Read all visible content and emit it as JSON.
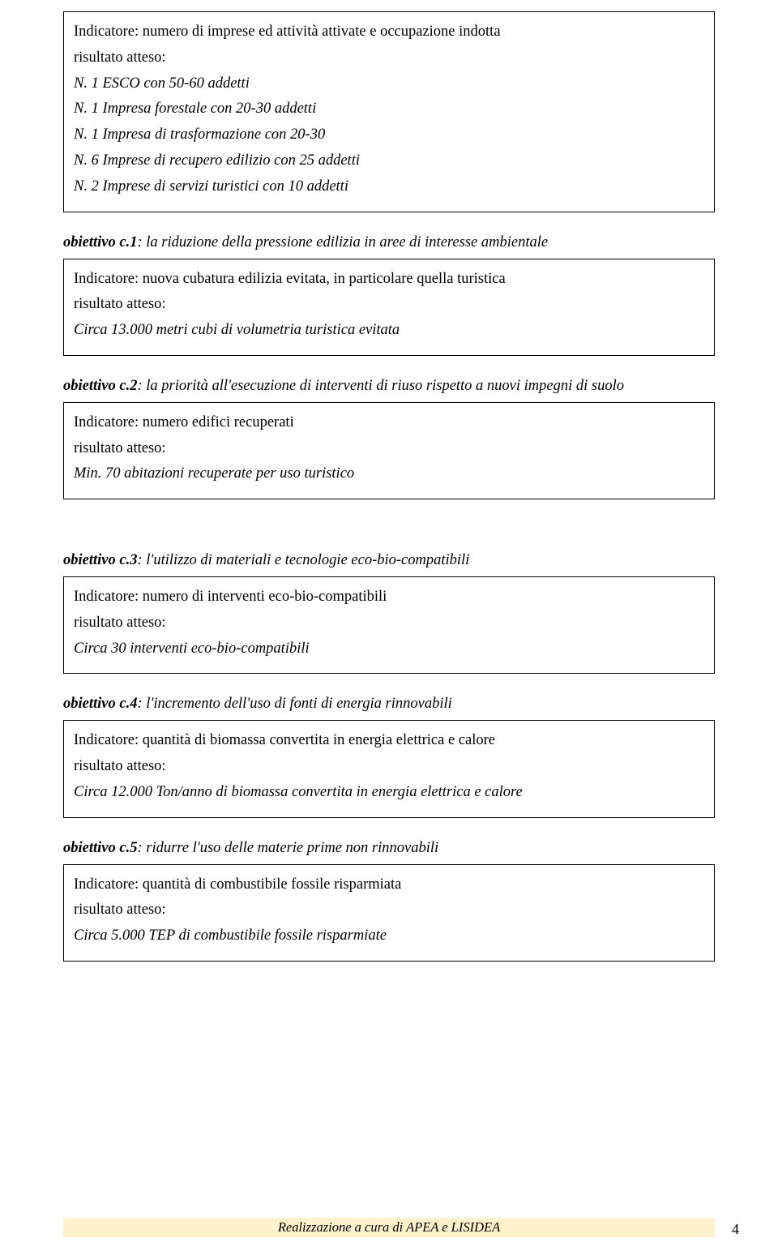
{
  "box1": {
    "indicatore": "Indicatore: numero di imprese ed attività attivate e occupazione indotta",
    "risultato_label": "risultato atteso:",
    "lines": [
      "N. 1 ESCO con 50-60 addetti",
      "N. 1 Impresa forestale con 20-30 addetti",
      "N. 1 Impresa di trasformazione con 20-30",
      "N. 6 Imprese di recupero edilizio con 25 addetti",
      "N. 2 Imprese di servizi turistici con 10 addetti"
    ]
  },
  "c1": {
    "title_bold": "obiettivo c.1",
    "title_rest": ": la riduzione della pressione edilizia in aree di interesse ambientale",
    "indicatore": "Indicatore: nuova cubatura edilizia evitata, in particolare quella turistica",
    "risultato_label": "risultato atteso:",
    "risultato": "Circa 13.000 metri cubi di volumetria turistica evitata"
  },
  "c2": {
    "title_bold": "obiettivo c.2",
    "title_rest": ": la priorità all'esecuzione di interventi di riuso rispetto a nuovi impegni di suolo",
    "indicatore": "Indicatore: numero edifici recuperati",
    "risultato_label": "risultato atteso:",
    "risultato": "Min. 70 abitazioni recuperate per uso turistico"
  },
  "c3": {
    "title_bold": "obiettivo c.3",
    "title_rest": ": l'utilizzo di materiali e tecnologie eco-bio-compatibili",
    "indicatore": "Indicatore: numero di interventi eco-bio-compatibili",
    "risultato_label": "risultato atteso:",
    "risultato": "Circa 30 interventi eco-bio-compatibili"
  },
  "c4": {
    "title_bold": "obiettivo c.4",
    "title_rest": ": l'incremento dell'uso di  fonti di energia rinnovabili",
    "indicatore": "Indicatore: quantità di biomassa convertita in energia elettrica e calore",
    "risultato_label": "risultato atteso:",
    "risultato": "Circa 12.000 Ton/anno di biomassa convertita in energia elettrica e calore"
  },
  "c5": {
    "title_bold": "obiettivo c.5",
    "title_rest": ": ridurre l'uso delle materie prime non rinnovabili",
    "indicatore": "Indicatore: quantità di combustibile fossile risparmiata",
    "risultato_label": "risultato atteso:",
    "risultato": "Circa 5.000 TEP di combustibile fossile risparmiate"
  },
  "footer": {
    "text": "Realizzazione a cura di APEA e LISIDEA",
    "page": "4",
    "bar_color": "#fff2cc"
  }
}
